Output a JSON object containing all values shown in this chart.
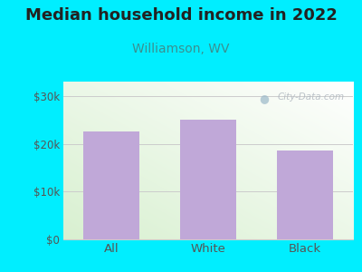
{
  "title": "Median household income in 2022",
  "subtitle": "Williamson, WV",
  "categories": [
    "All",
    "White",
    "Black"
  ],
  "values": [
    22500,
    25000,
    18500
  ],
  "bar_color": "#c0a8d8",
  "background_color": "#00eeff",
  "yticks": [
    0,
    10000,
    20000,
    30000
  ],
  "ytick_labels": [
    "$0",
    "$10k",
    "$20k",
    "$30k"
  ],
  "ylim": [
    0,
    33000
  ],
  "title_fontsize": 13,
  "subtitle_fontsize": 10,
  "title_color": "#222222",
  "subtitle_color": "#3a9090",
  "axis_label_color": "#555555",
  "watermark": "City-Data.com",
  "gradient_colors": [
    "#d8f0d0",
    "#f8fbf8",
    "#ffffff"
  ],
  "grid_color": "#cccccc"
}
